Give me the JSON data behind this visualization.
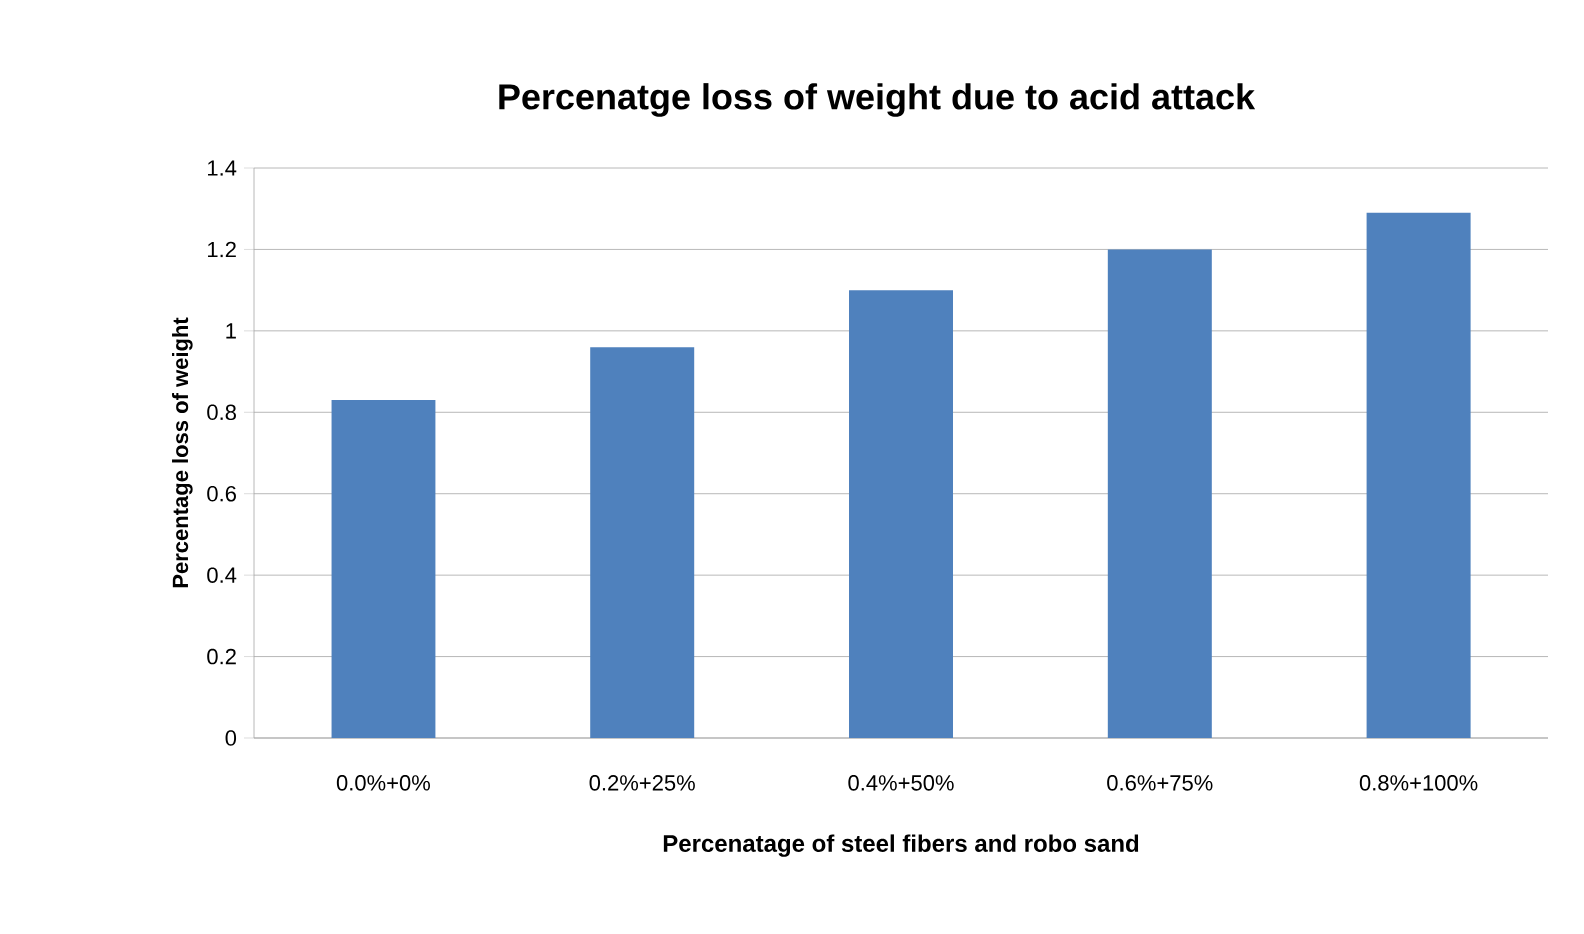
{
  "chart_data": {
    "type": "bar",
    "title": "Percenatge loss of weight due to acid attack",
    "xlabel": "Percenatage of steel fibers and robo sand",
    "ylabel": "Percentage loss of weight",
    "categories": [
      "0.0%+0%",
      "0.2%+25%",
      "0.4%+50%",
      "0.6%+75%",
      "0.8%+100%"
    ],
    "values": [
      0.83,
      0.96,
      1.1,
      1.2,
      1.29
    ],
    "color": "#4f81bd",
    "ylim": [
      0,
      1.4
    ],
    "yticks": [
      0,
      0.2,
      0.4,
      0.6,
      0.8,
      1,
      1.2,
      1.4
    ],
    "grid": "y"
  }
}
